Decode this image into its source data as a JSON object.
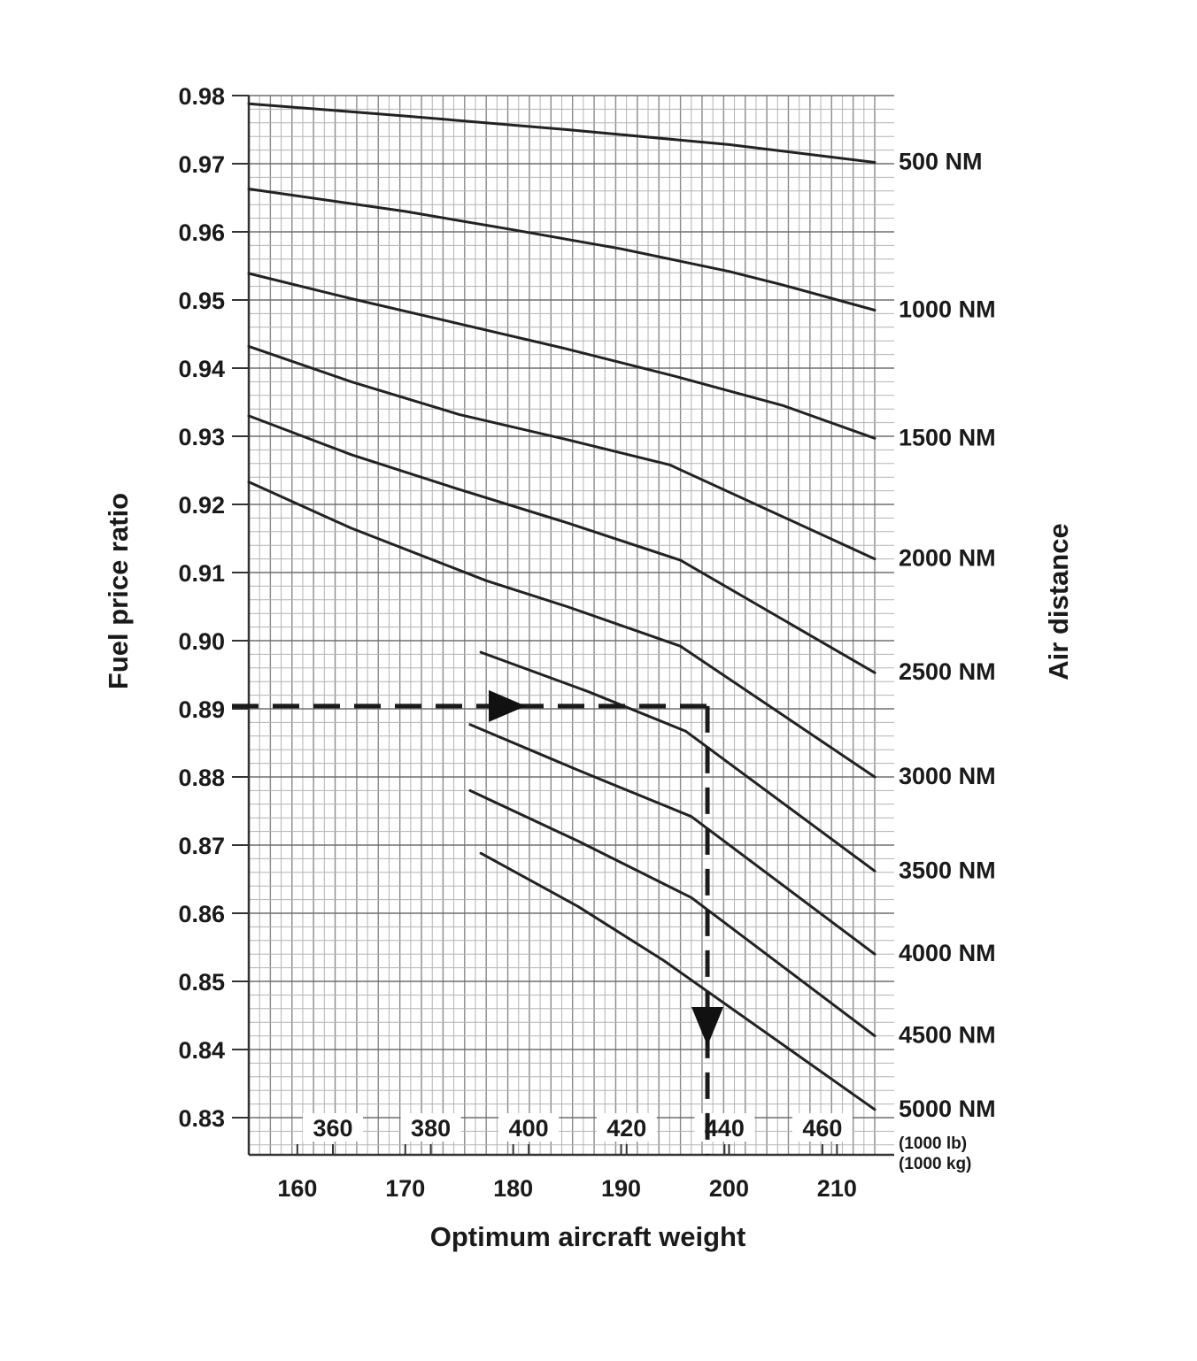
{
  "chart_data": {
    "type": "line",
    "xlabel": "Optimum aircraft weight",
    "ylabel": "Fuel price ratio",
    "right_label": "Air distance",
    "primary_x_unit": "(1000 kg)",
    "secondary_x_unit": "(1000 lb)",
    "xlim": [
      155.5,
      213.5
    ],
    "ylim": [
      0.83,
      0.98
    ],
    "grid": true,
    "x_ticks": [
      "160",
      "170",
      "180",
      "190",
      "200",
      "210"
    ],
    "x_tick_values": [
      160,
      170,
      180,
      190,
      200,
      210
    ],
    "secondary_x_ticks": [
      "360",
      "380",
      "400",
      "420",
      "440",
      "460"
    ],
    "secondary_x_tick_values": [
      360,
      380,
      400,
      420,
      440,
      460
    ],
    "y_ticks": [
      "0.98",
      "0.97",
      "0.96",
      "0.95",
      "0.94",
      "0.93",
      "0.92",
      "0.91",
      "0.90",
      "0.89",
      "0.88",
      "0.87",
      "0.86",
      "0.85",
      "0.84",
      "0.83"
    ],
    "y_tick_values": [
      0.98,
      0.97,
      0.96,
      0.95,
      0.94,
      0.93,
      0.92,
      0.91,
      0.9,
      0.89,
      0.88,
      0.87,
      0.86,
      0.85,
      0.84,
      0.83
    ],
    "series": [
      {
        "name": "500 NM",
        "x": [
          155.5,
          170,
          185,
          200,
          213.5
        ],
        "y": [
          0.9788,
          0.977,
          0.975,
          0.9728,
          0.9702
        ]
      },
      {
        "name": "1000 NM",
        "x": [
          155.5,
          170,
          180,
          190,
          200,
          205,
          213.5
        ],
        "y": [
          0.9663,
          0.963,
          0.9603,
          0.9575,
          0.9542,
          0.9522,
          0.9485
        ]
      },
      {
        "name": "1500 NM",
        "x": [
          155.5,
          165,
          175,
          185,
          195,
          205,
          213.5
        ],
        "y": [
          0.9539,
          0.9502,
          0.9465,
          0.9428,
          0.9388,
          0.9345,
          0.9297
        ]
      },
      {
        "name": "2000 NM",
        "x": [
          155.5,
          165,
          175,
          185,
          194.5,
          213.5
        ],
        "y": [
          0.9432,
          0.938,
          0.9332,
          0.9295,
          0.9258,
          0.912
        ]
      },
      {
        "name": "2500 NM",
        "x": [
          155.5,
          165,
          175,
          185,
          195.5,
          213.5
        ],
        "y": [
          0.933,
          0.9273,
          0.9222,
          0.9173,
          0.9118,
          0.8953
        ]
      },
      {
        "name": "3000 NM",
        "x": [
          155.5,
          165,
          177.5,
          185,
          195.5,
          213.5
        ],
        "y": [
          0.9233,
          0.9165,
          0.9088,
          0.905,
          0.8992,
          0.88
        ]
      },
      {
        "name": "3500 NM",
        "x": [
          177,
          187,
          196,
          213.5
        ],
        "y": [
          0.8983,
          0.8925,
          0.8867,
          0.8662
        ]
      },
      {
        "name": "4000 NM",
        "x": [
          176,
          186,
          196.5,
          213.5
        ],
        "y": [
          0.8877,
          0.881,
          0.8742,
          0.854
        ]
      },
      {
        "name": "4500 NM",
        "x": [
          176,
          186,
          196.5,
          213.5
        ],
        "y": [
          0.878,
          0.8706,
          0.8623,
          0.842
        ]
      },
      {
        "name": "5000 NM",
        "x": [
          177,
          186,
          194,
          213.5
        ],
        "y": [
          0.8688,
          0.861,
          0.853,
          0.8312
        ]
      }
    ],
    "example_path": {
      "y_start": 0.8904,
      "x_turn": 198.0,
      "x_end_y": 0.8245
    }
  }
}
